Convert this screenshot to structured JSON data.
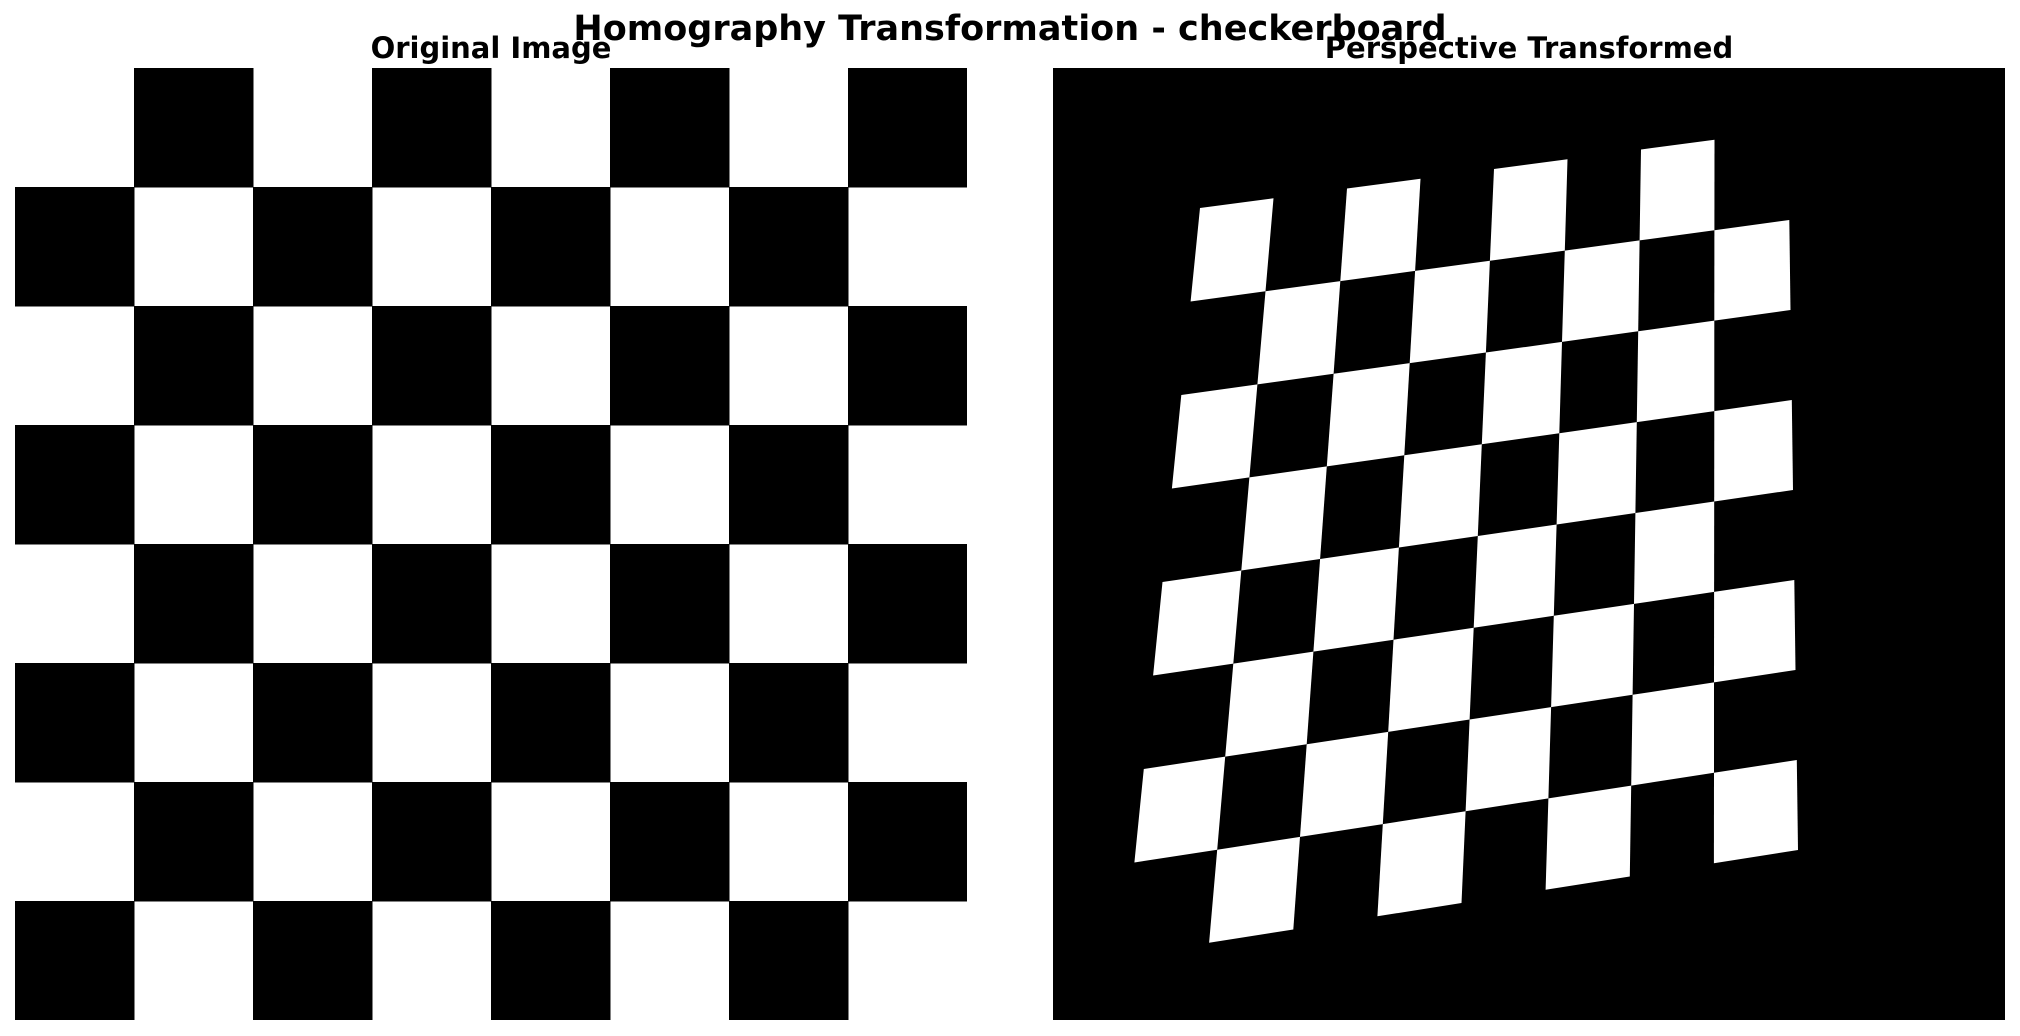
{
  "figure": {
    "title": "Homography Transformation - checkerboard"
  },
  "panels": [
    {
      "title": "Original Image"
    },
    {
      "title": "Perspective Transformed"
    }
  ],
  "checkerboard": {
    "rows": 8,
    "cols": 8,
    "dark_color": "#000000",
    "light_color": "#ffffff",
    "background_color": "#000000"
  }
}
